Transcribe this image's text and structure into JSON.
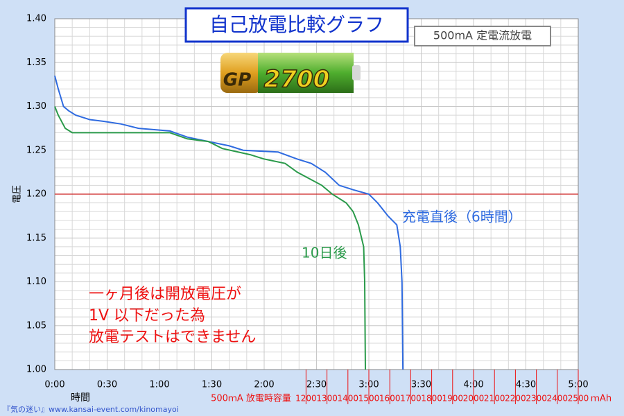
{
  "chart_data": {
    "type": "line",
    "title": "自己放電比較グラフ",
    "subtitle": "500mA 定電流放電",
    "battery_brand": "GP",
    "battery_capacity": "2700",
    "ylabel": "電圧",
    "xlabel": "時間",
    "x2label": "500ｍA 放電時容量",
    "x2unit": "ｍAh",
    "note_lines": [
      "一ヶ月後は開放電圧が",
      "1V 以下だった為",
      "放電テストはできません"
    ],
    "footer": "『気の迷い』www.kansai-event.com/kinomayoi",
    "grid": true,
    "hline": {
      "value": 1.2,
      "color": "#cc2222"
    },
    "xlim": [
      0,
      300
    ],
    "xticks": [
      {
        "value": 0,
        "label": "0:00"
      },
      {
        "value": 30,
        "label": "0:30"
      },
      {
        "value": 60,
        "label": "1:00"
      },
      {
        "value": 90,
        "label": "1:30"
      },
      {
        "value": 120,
        "label": "2:00"
      },
      {
        "value": 150,
        "label": "2:30"
      },
      {
        "value": 180,
        "label": "3:00"
      },
      {
        "value": 210,
        "label": "3:30"
      },
      {
        "value": 240,
        "label": "4:00"
      },
      {
        "value": 270,
        "label": "4:30"
      },
      {
        "value": 300,
        "label": "5:00"
      }
    ],
    "x2lim": [
      0,
      2500
    ],
    "x2ticks": [
      1200,
      1300,
      1400,
      1500,
      1600,
      1700,
      1800,
      1900,
      2000,
      2100,
      2200,
      2300,
      2400,
      2500
    ],
    "x2color": "#ee1111",
    "ylim": [
      1.0,
      1.4
    ],
    "yticks": [
      {
        "value": 1.0,
        "label": "1.00"
      },
      {
        "value": 1.05,
        "label": "1.05"
      },
      {
        "value": 1.1,
        "label": "1.10"
      },
      {
        "value": 1.15,
        "label": "1.15"
      },
      {
        "value": 1.2,
        "label": "1.20"
      },
      {
        "value": 1.25,
        "label": "1.25"
      },
      {
        "value": 1.3,
        "label": "1.30"
      },
      {
        "value": 1.35,
        "label": "1.35"
      },
      {
        "value": 1.4,
        "label": "1.40"
      }
    ],
    "series": [
      {
        "name": "充電直後（6時間）",
        "color": "#2f6be0",
        "x": [
          0,
          2,
          5,
          8,
          12,
          20,
          28,
          38,
          48,
          66,
          76,
          88,
          100,
          108,
          128,
          139,
          147,
          155,
          163,
          171,
          180,
          185,
          191,
          196,
          198,
          199,
          199.5
        ],
        "values": [
          1.335,
          1.32,
          1.3,
          1.295,
          1.29,
          1.285,
          1.283,
          1.28,
          1.275,
          1.272,
          1.265,
          1.26,
          1.255,
          1.25,
          1.248,
          1.24,
          1.235,
          1.225,
          1.21,
          1.205,
          1.2,
          1.19,
          1.175,
          1.165,
          1.14,
          1.1,
          1.0
        ]
      },
      {
        "name": "10日後",
        "color": "#2a9a4a",
        "x": [
          0,
          2,
          6,
          10,
          28,
          66,
          76,
          88,
          96,
          112,
          120,
          132,
          139,
          153,
          159,
          167,
          171,
          174,
          177,
          177.6,
          178
        ],
        "values": [
          1.3,
          1.29,
          1.275,
          1.27,
          1.27,
          1.27,
          1.263,
          1.26,
          1.252,
          1.245,
          1.24,
          1.235,
          1.225,
          1.21,
          1.2,
          1.19,
          1.18,
          1.165,
          1.14,
          1.1,
          1.0
        ]
      }
    ]
  }
}
